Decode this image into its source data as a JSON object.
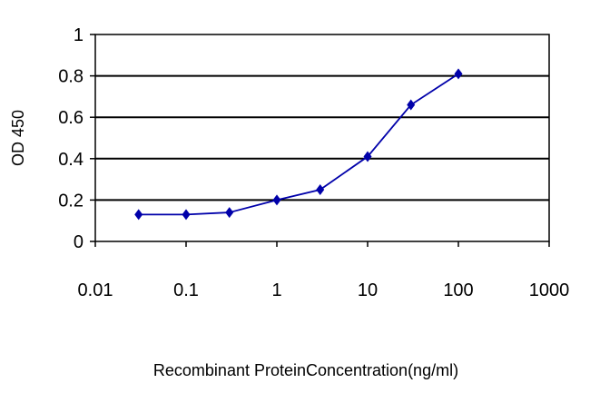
{
  "chart_data": {
    "type": "line",
    "title": "",
    "xlabel": "Recombinant ProteinConcentration(ng/ml)",
    "ylabel": "OD 450",
    "x_scale": "log",
    "xlim": [
      0.01,
      1000
    ],
    "ylim": [
      0,
      1
    ],
    "x_ticks": [
      0.01,
      0.1,
      1,
      10,
      100,
      1000
    ],
    "x_tick_labels": [
      "0.01",
      "0.1",
      "1",
      "10",
      "100",
      "1000"
    ],
    "y_ticks": [
      0,
      0.2,
      0.4,
      0.6,
      0.8,
      1
    ],
    "y_tick_labels": [
      "0",
      "0.2",
      "0.4",
      "0.6",
      "0.8",
      "1"
    ],
    "grid": "horizontal",
    "legend": "none",
    "series": [
      {
        "color": "#0000aa",
        "marker": "diamond",
        "x": [
          0.03,
          0.1,
          0.3,
          1,
          3,
          10,
          30,
          100
        ],
        "y": [
          0.13,
          0.13,
          0.14,
          0.2,
          0.25,
          0.41,
          0.66,
          0.81
        ]
      }
    ]
  }
}
